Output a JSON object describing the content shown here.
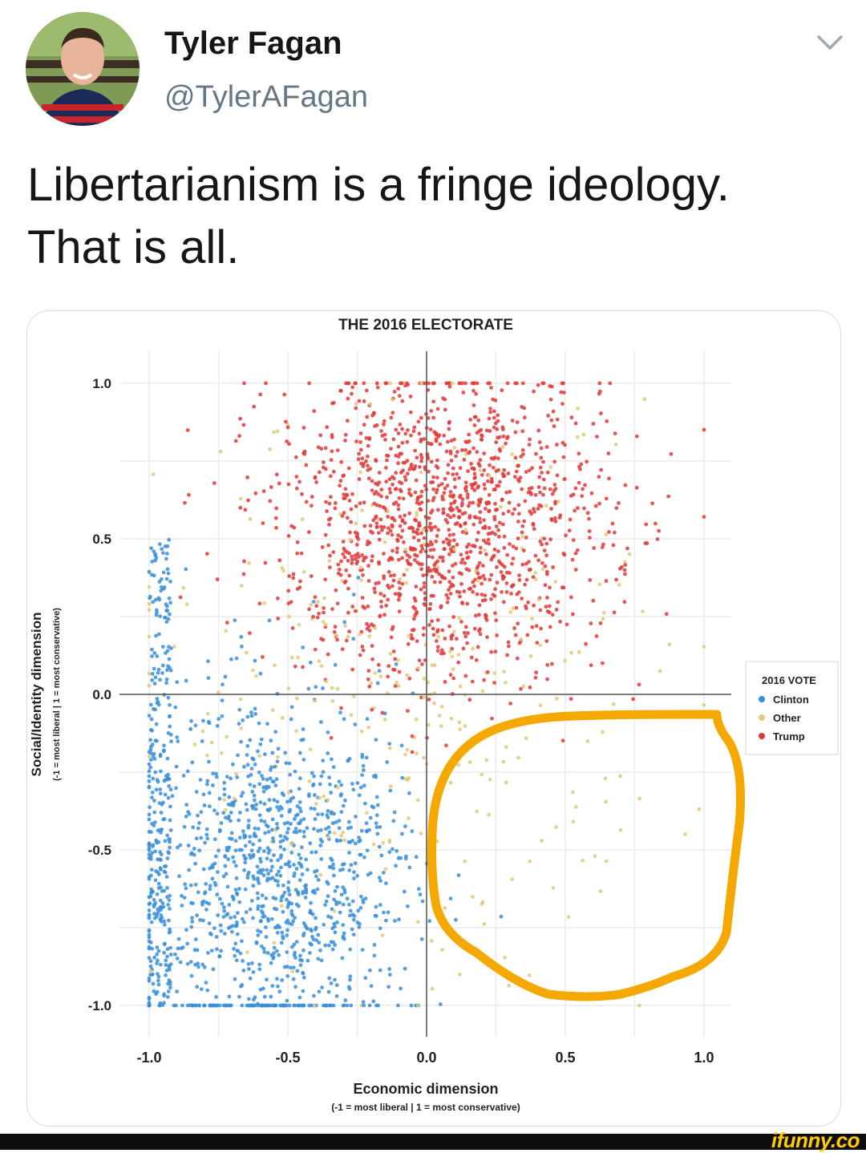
{
  "author": {
    "display_name": "Tyler Fagan",
    "handle": "@TylerAFagan",
    "avatar_icon": "profile-photo"
  },
  "menu": {
    "icon": "chevron-down-icon"
  },
  "tweet": {
    "lines": [
      "Libertarianism is a fringe ideology.",
      "That is all."
    ]
  },
  "chart_data": {
    "type": "scatter",
    "title": "THE 2016 ELECTORATE",
    "xlabel": "Economic dimension",
    "xlabel_sub": "(-1 = most liberal | 1 = most conservative)",
    "ylabel": "Social/Identity dimension",
    "ylabel_sub": "(-1 = most liberal | 1 = most conservative)",
    "xlim": [
      -1.0,
      1.0
    ],
    "ylim": [
      -1.0,
      1.0
    ],
    "xticks": [
      "-1.0",
      "-0.5",
      "0.0",
      "0.5",
      "1.0"
    ],
    "yticks": [
      "1.0",
      "0.5",
      "0.0",
      "-0.5",
      "-1.0"
    ],
    "grid": true,
    "legend_position": "right",
    "legend": {
      "title": "2016 VOTE",
      "entries": [
        "Clinton",
        "Other",
        "Trump"
      ]
    },
    "series": [
      {
        "name": "Clinton",
        "color": "#3a8fd9",
        "center": [
          -0.55,
          -0.6
        ],
        "spread": [
          0.25,
          0.3
        ],
        "count": 1400
      },
      {
        "name": "Other",
        "color": "#e3c97a",
        "center": [
          -0.05,
          0.0
        ],
        "spread": [
          0.45,
          0.45
        ],
        "count": 320
      },
      {
        "name": "Trump",
        "color": "#e0393a",
        "center": [
          0.05,
          0.55
        ],
        "spread": [
          0.3,
          0.25
        ],
        "count": 1400
      }
    ],
    "annotation": {
      "type": "hand-drawn-circle",
      "color": "#f5a800",
      "region_x": [
        0.03,
        1.15
      ],
      "region_y": [
        -1.0,
        -0.07
      ]
    }
  }
}
